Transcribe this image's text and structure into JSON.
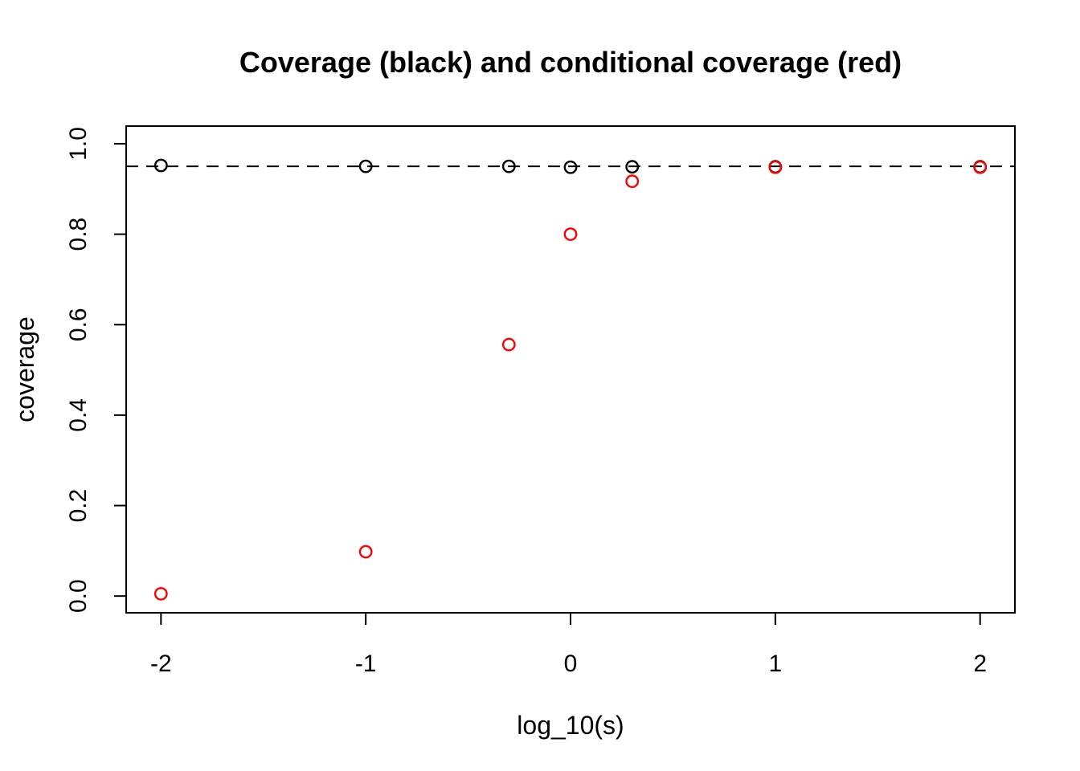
{
  "chart_data": {
    "type": "scatter",
    "title": "Coverage (black) and conditional coverage (red)",
    "xlabel": "log_10(s)",
    "ylabel": "coverage",
    "grid": false,
    "marker": "open-circle",
    "background": "#ffffff",
    "xlim": [
      -2.17,
      2.17
    ],
    "ylim": [
      -0.037,
      1.039
    ],
    "reference_line": {
      "y": 0.95,
      "style": "dashed",
      "color": "#000000"
    },
    "x_ticks": [
      {
        "value": -2,
        "label": "-2"
      },
      {
        "value": -1,
        "label": "-1"
      },
      {
        "value": 0,
        "label": "0"
      },
      {
        "value": 1,
        "label": "1"
      },
      {
        "value": 2,
        "label": "2"
      }
    ],
    "y_ticks": [
      {
        "value": 0.0,
        "label": "0.0"
      },
      {
        "value": 0.2,
        "label": "0.2"
      },
      {
        "value": 0.4,
        "label": "0.4"
      },
      {
        "value": 0.6,
        "label": "0.6"
      },
      {
        "value": 0.8,
        "label": "0.8"
      },
      {
        "value": 1.0,
        "label": "1.0"
      }
    ],
    "x": [
      -2,
      -1,
      -0.301,
      0,
      0.301,
      1,
      2
    ],
    "series": [
      {
        "name": "coverage",
        "color": "#000000",
        "values": [
          0.952,
          0.95,
          0.95,
          0.948,
          0.949,
          0.949,
          0.949
        ]
      },
      {
        "name": "conditional coverage",
        "color": "#ff0000",
        "values": [
          0.005,
          0.098,
          0.556,
          0.8,
          0.917,
          0.948,
          0.948
        ]
      }
    ]
  }
}
